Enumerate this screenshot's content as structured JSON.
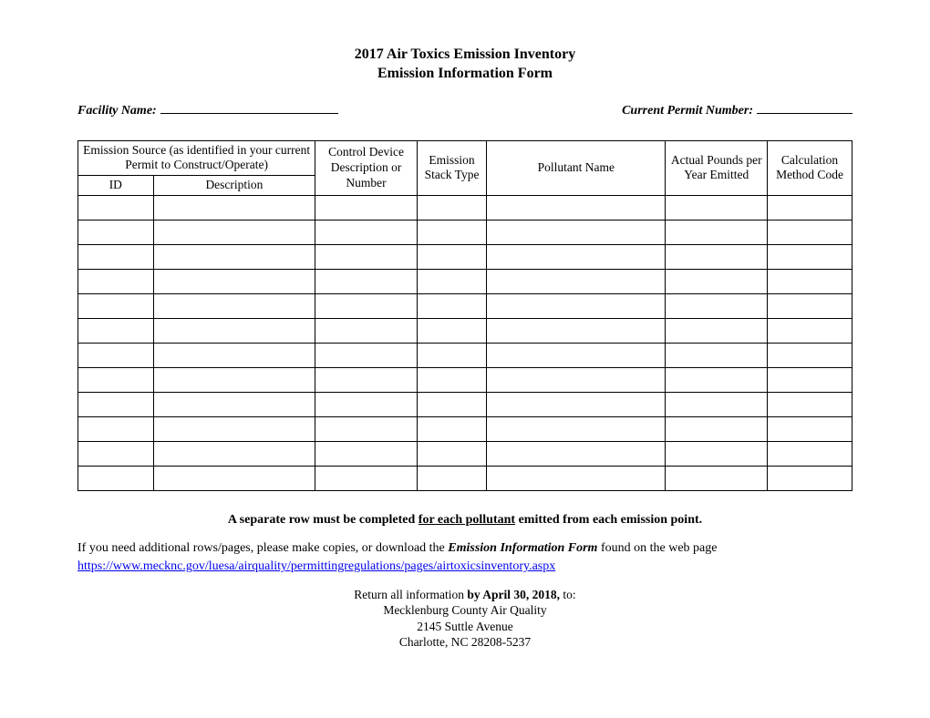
{
  "title": {
    "line1": "2017 Air Toxics Emission Inventory",
    "line2": "Emission Information Form"
  },
  "fields": {
    "facility_label": "Facility Name:",
    "permit_label": "Current Permit Number:"
  },
  "table": {
    "header": {
      "source_group": "Emission Source (as identified in your current Permit to Construct/Operate)",
      "id": "ID",
      "description": "Description",
      "control": "Control Device Description or Number",
      "stack": "Emission Stack Type",
      "pollutant": "Pollutant Name",
      "pounds": "Actual Pounds per Year Emitted",
      "calc": "Calculation Method Code"
    },
    "num_rows": 12
  },
  "notes": {
    "bold_pre": "A separate row must be completed ",
    "bold_under": "for each pollutant",
    "bold_post": " emitted from each emission point.",
    "p_pre": "If you need additional rows/pages, please make copies, or download the ",
    "p_em": "Emission Information Form",
    "p_post": " found on the web page",
    "link": "https://www.mecknc.gov/luesa/airquality/permittingregulations/pages/airtoxicsinventory.aspx"
  },
  "footer": {
    "l1_pre": "Return all information ",
    "l1_bold": "by April 30, 2018,",
    "l1_post": " to:",
    "l2": "Mecklenburg County Air Quality",
    "l3": "2145 Suttle Avenue",
    "l4": "Charlotte, NC  28208-5237"
  }
}
